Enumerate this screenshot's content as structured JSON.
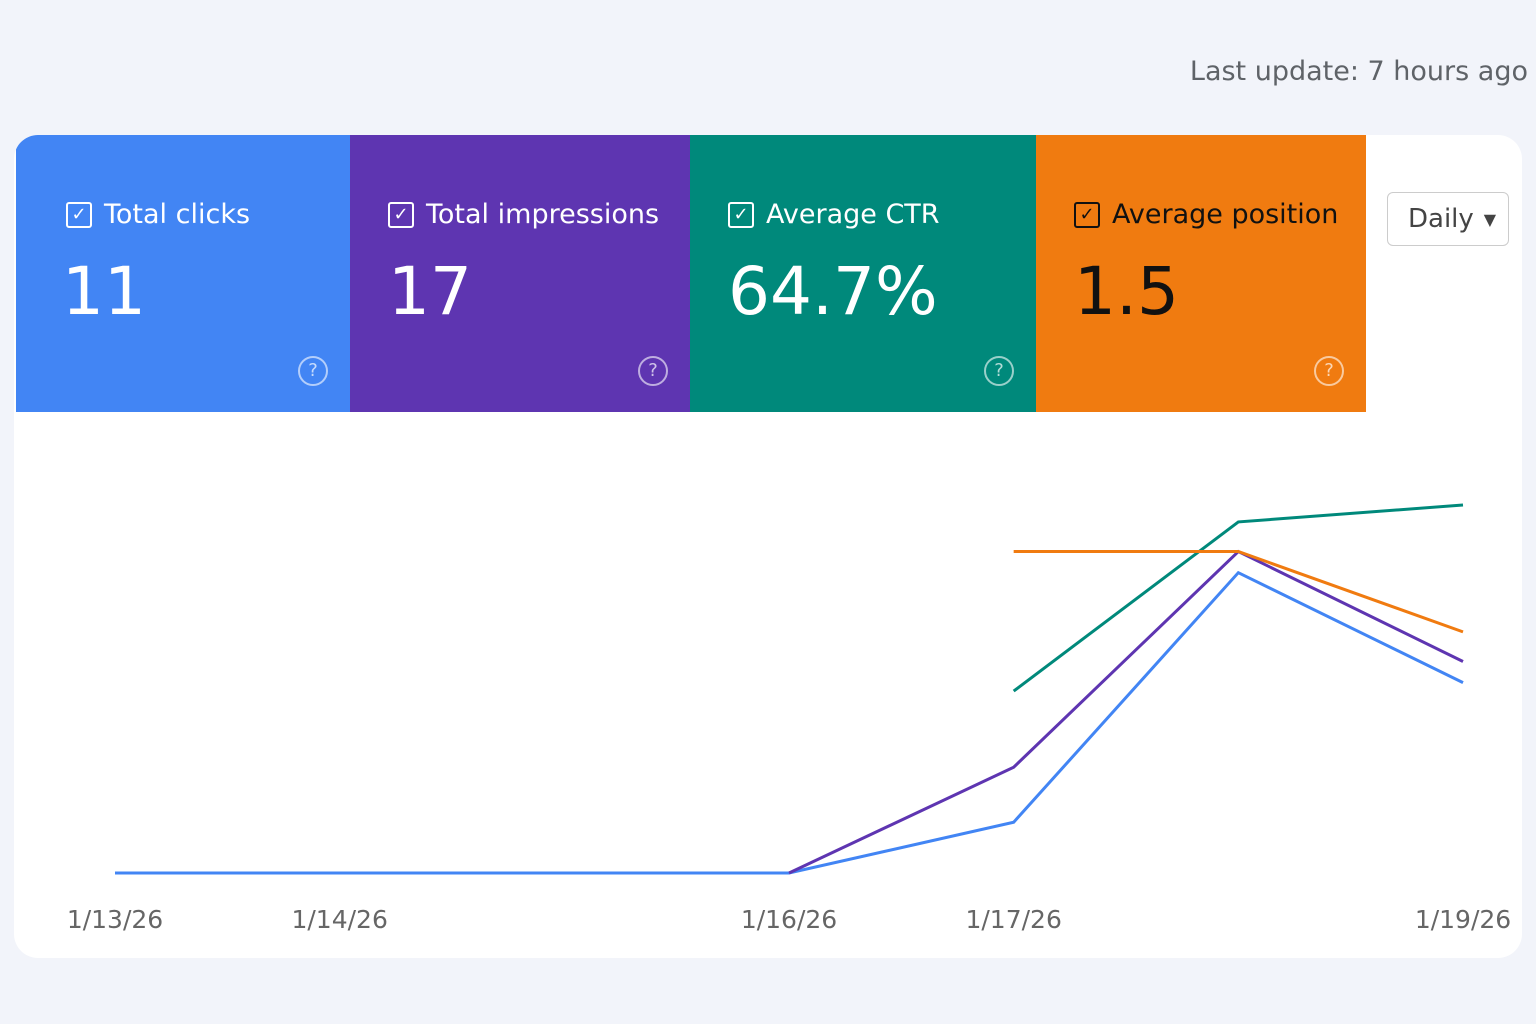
{
  "header": {
    "last_update": "Last update: 7 hours ago"
  },
  "cards": [
    {
      "label": "Total clicks",
      "value": "11",
      "color": "#4285f4",
      "text_color": "#ffffff"
    },
    {
      "label": "Total impressions",
      "value": "17",
      "color": "#5e35b1",
      "text_color": "#ffffff"
    },
    {
      "label": "Average CTR",
      "value": "64.7%",
      "color": "#00897b",
      "text_color": "#ffffff"
    },
    {
      "label": "Average position",
      "value": "1.5",
      "color": "#f07b10",
      "text_color": "#111111"
    }
  ],
  "granularity": "Daily",
  "chart_data": {
    "type": "line",
    "categories": [
      "1/13/26",
      "1/14/26",
      null,
      "1/16/26",
      "1/17/26",
      null,
      "1/19/26"
    ],
    "ylim": [
      0,
      100
    ],
    "series": [
      {
        "name": "Total clicks",
        "color": "#4285f4",
        "values": [
          0,
          0,
          0,
          0,
          12,
          71,
          45
        ]
      },
      {
        "name": "Total impressions",
        "color": "#5e35b1",
        "values": [
          null,
          null,
          null,
          0,
          25,
          76,
          50
        ]
      },
      {
        "name": "Average CTR",
        "color": "#00897b",
        "values": [
          null,
          null,
          null,
          null,
          43,
          83,
          87
        ]
      },
      {
        "name": "Average position",
        "color": "#f07b10",
        "values": [
          null,
          null,
          null,
          null,
          76,
          76,
          57
        ]
      }
    ]
  }
}
